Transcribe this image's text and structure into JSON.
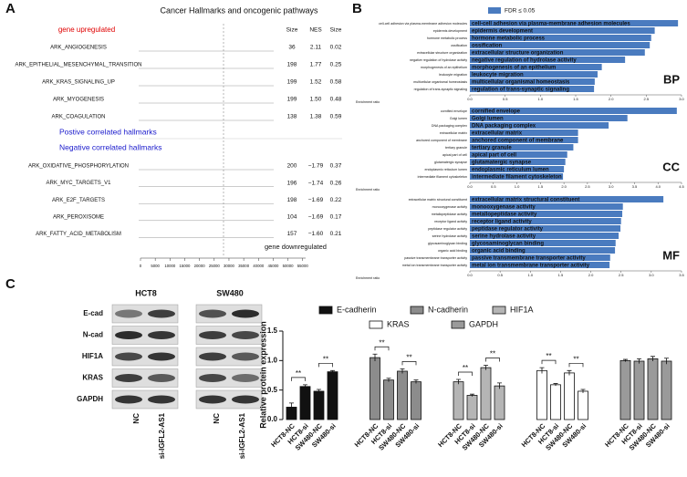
{
  "panel_labels": [
    "A",
    "B",
    "C"
  ],
  "gsea": {
    "title": "Cancer Hallmarks and oncogenic pathways",
    "up_label": "gene upregulated",
    "down_label": "gene downregulated",
    "columns": [
      "Size",
      "NES",
      "Size"
    ],
    "positive_heading": "Postive correlated hallmarks",
    "negative_heading": "Negative correlated hallmarks",
    "positive_rows": [
      [
        "ARK_ANGIOGENESIS",
        "36",
        "2.11",
        "0.02"
      ],
      [
        "ARK_EPITHELIAL_MESENCHYMAL_TRANSITION",
        "198",
        "1.77",
        "0.25"
      ],
      [
        "ARK_KRAS_SIGNALING_UP",
        "199",
        "1.52",
        "0.58"
      ],
      [
        "ARK_MYOGENESIS",
        "199",
        "1.50",
        "0.48"
      ],
      [
        "ARK_COAGULATION",
        "138",
        "1.38",
        "0.59"
      ]
    ],
    "negative_rows": [
      [
        "ARK_OXIDATIVE_PHOSPHORYLATION",
        "200",
        "−1.79",
        "0.37"
      ],
      [
        "ARK_MYC_TARGETS_V1",
        "196",
        "−1.74",
        "0.26"
      ],
      [
        "ARK_E2F_TARGETS",
        "198",
        "−1.69",
        "0.22"
      ],
      [
        "ARK_PEROXISOME",
        "104",
        "−1.69",
        "0.17"
      ],
      [
        "ARK_FATTY_ACID_METABOLISM",
        "157",
        "−1.60",
        "0.21"
      ]
    ],
    "xlim": [
      0,
      56000
    ],
    "xticks": [
      0,
      5000,
      10000,
      15000,
      20000,
      25000,
      30000,
      35000,
      40000,
      45000,
      50000,
      55000
    ]
  },
  "go_legend": {
    "label": "FDR ≤ 0.05",
    "color": "#4a7bbf"
  },
  "blot": {
    "cell_lines": [
      "HCT8",
      "SW480"
    ],
    "proteins": [
      "E-cad",
      "N-cad",
      "HIF1A",
      "KRAS",
      "GAPDH"
    ],
    "lanes": [
      "NC",
      "si-IGFL2-AS1",
      "NC",
      "si-IGFL2-AS1"
    ]
  },
  "chart_data": [
    {
      "type": "barh",
      "title": "BP",
      "xlabel": "Enrichment ratio",
      "color": "#4a7bbf",
      "categories": [
        "cell-cell adhesion via plasma-membrane adhesion molecules",
        "epidermis development",
        "hormone metabolic process",
        "ossification",
        "extracellular structure organization",
        "negative regulation of hydrolase activity",
        "morphogenesis of an epithelium",
        "leukocyte migration",
        "multicellular organismal homeostasis",
        "regulation of trans-synaptic signaling"
      ],
      "values": [
        2.95,
        2.62,
        2.57,
        2.55,
        2.48,
        2.2,
        1.87,
        1.81,
        1.77,
        1.76
      ],
      "xlim": [
        0,
        3
      ],
      "xticks": [
        {
          "value": 0,
          "label": "0.0"
        },
        0.5,
        {
          "value": 1,
          "label": "1.0"
        },
        1.5,
        {
          "value": 2,
          "label": "2.0"
        },
        2.5,
        {
          "value": 3,
          "label": "3.0"
        }
      ]
    },
    {
      "type": "barh",
      "title": "CC",
      "xlabel": "Enrichment ratio",
      "color": "#4a7bbf",
      "categories": [
        "cornified envelope",
        "Golgi lumen",
        "DNA packaging complex",
        "extracellular matrix",
        "anchored component of membrane",
        "tertiary granule",
        "apical part of cell",
        "glutamatergic synapse",
        "endoplasmic reticulum lumen",
        "intermediate filament cytoskeleton"
      ],
      "values": [
        4.4,
        3.35,
        2.95,
        2.3,
        2.3,
        2.2,
        2.07,
        2.03,
        2.0,
        1.98
      ],
      "xlim": [
        0,
        4.5
      ],
      "xticks": [
        {
          "value": 0,
          "label": "0.0"
        },
        0.5,
        {
          "value": 1,
          "label": "1.0"
        },
        1.5,
        {
          "value": 2,
          "label": "2.0"
        },
        2.5,
        {
          "value": 3,
          "label": "3.0"
        },
        3.5,
        {
          "value": 4,
          "label": "4.0"
        },
        4.5
      ]
    },
    {
      "type": "barh",
      "title": "MF",
      "xlabel": "Enrichment ratio",
      "color": "#4a7bbf",
      "categories": [
        "extracellular matrix structural constituent",
        "monooxygenase activity",
        "metallopeptidase activity",
        "receptor ligand activity",
        "peptidase regulator activity",
        "serine hydrolase activity",
        "glycosaminoglycan binding",
        "organic acid binding",
        "passive transmembrane transporter activity",
        "metal ion transmembrane transporter activity"
      ],
      "values": [
        3.2,
        2.53,
        2.52,
        2.5,
        2.49,
        2.46,
        2.41,
        2.4,
        2.32,
        2.31
      ],
      "xlim": [
        0,
        3.5
      ],
      "xticks": [
        {
          "value": 0,
          "label": "0.0"
        },
        0.5,
        {
          "value": 1,
          "label": "1.0"
        },
        1.5,
        {
          "value": 2,
          "label": "2.0"
        },
        2.5,
        {
          "value": 3,
          "label": "3.0"
        },
        3.5
      ]
    },
    {
      "type": "bar",
      "ylabel": "Relative protein expression",
      "categories": [
        "HCT8-NC",
        "HCT8-si",
        "SW480-NC",
        "SW480-si"
      ],
      "series": [
        {
          "name": "E-cadherin",
          "color": "#111111",
          "values": [
            0.21,
            0.56,
            0.48,
            0.81
          ],
          "errors": [
            0.07,
            0.03,
            0.03,
            0.02
          ],
          "significance": [
            "**",
            "**"
          ]
        },
        {
          "name": "N-cadherin",
          "color": "#8c8c8c",
          "values": [
            1.05,
            0.67,
            0.82,
            0.64
          ],
          "errors": [
            0.06,
            0.03,
            0.04,
            0.03
          ],
          "significance": [
            "**",
            "**"
          ]
        },
        {
          "name": "HIF1A",
          "color": "#b5b5b5",
          "values": [
            0.64,
            0.41,
            0.88,
            0.57
          ],
          "errors": [
            0.04,
            0.02,
            0.04,
            0.05
          ],
          "significance": [
            "**",
            "**"
          ]
        },
        {
          "name": "KRAS",
          "color": "#ffffff",
          "values": [
            0.83,
            0.59,
            0.79,
            0.48
          ],
          "errors": [
            0.05,
            0.02,
            0.04,
            0.03
          ],
          "significance": [
            "**",
            "**"
          ]
        },
        {
          "name": "GAPDH",
          "color": "#9a9a9a",
          "values": [
            1.0,
            0.99,
            1.03,
            0.99
          ],
          "errors": [
            0.02,
            0.04,
            0.04,
            0.05
          ]
        }
      ],
      "ylim": [
        0,
        1.5
      ],
      "yticks": [
        {
          "value": 0,
          "label": "0.0"
        },
        0.5,
        {
          "value": 1,
          "label": "1.0"
        },
        1.5
      ]
    }
  ]
}
